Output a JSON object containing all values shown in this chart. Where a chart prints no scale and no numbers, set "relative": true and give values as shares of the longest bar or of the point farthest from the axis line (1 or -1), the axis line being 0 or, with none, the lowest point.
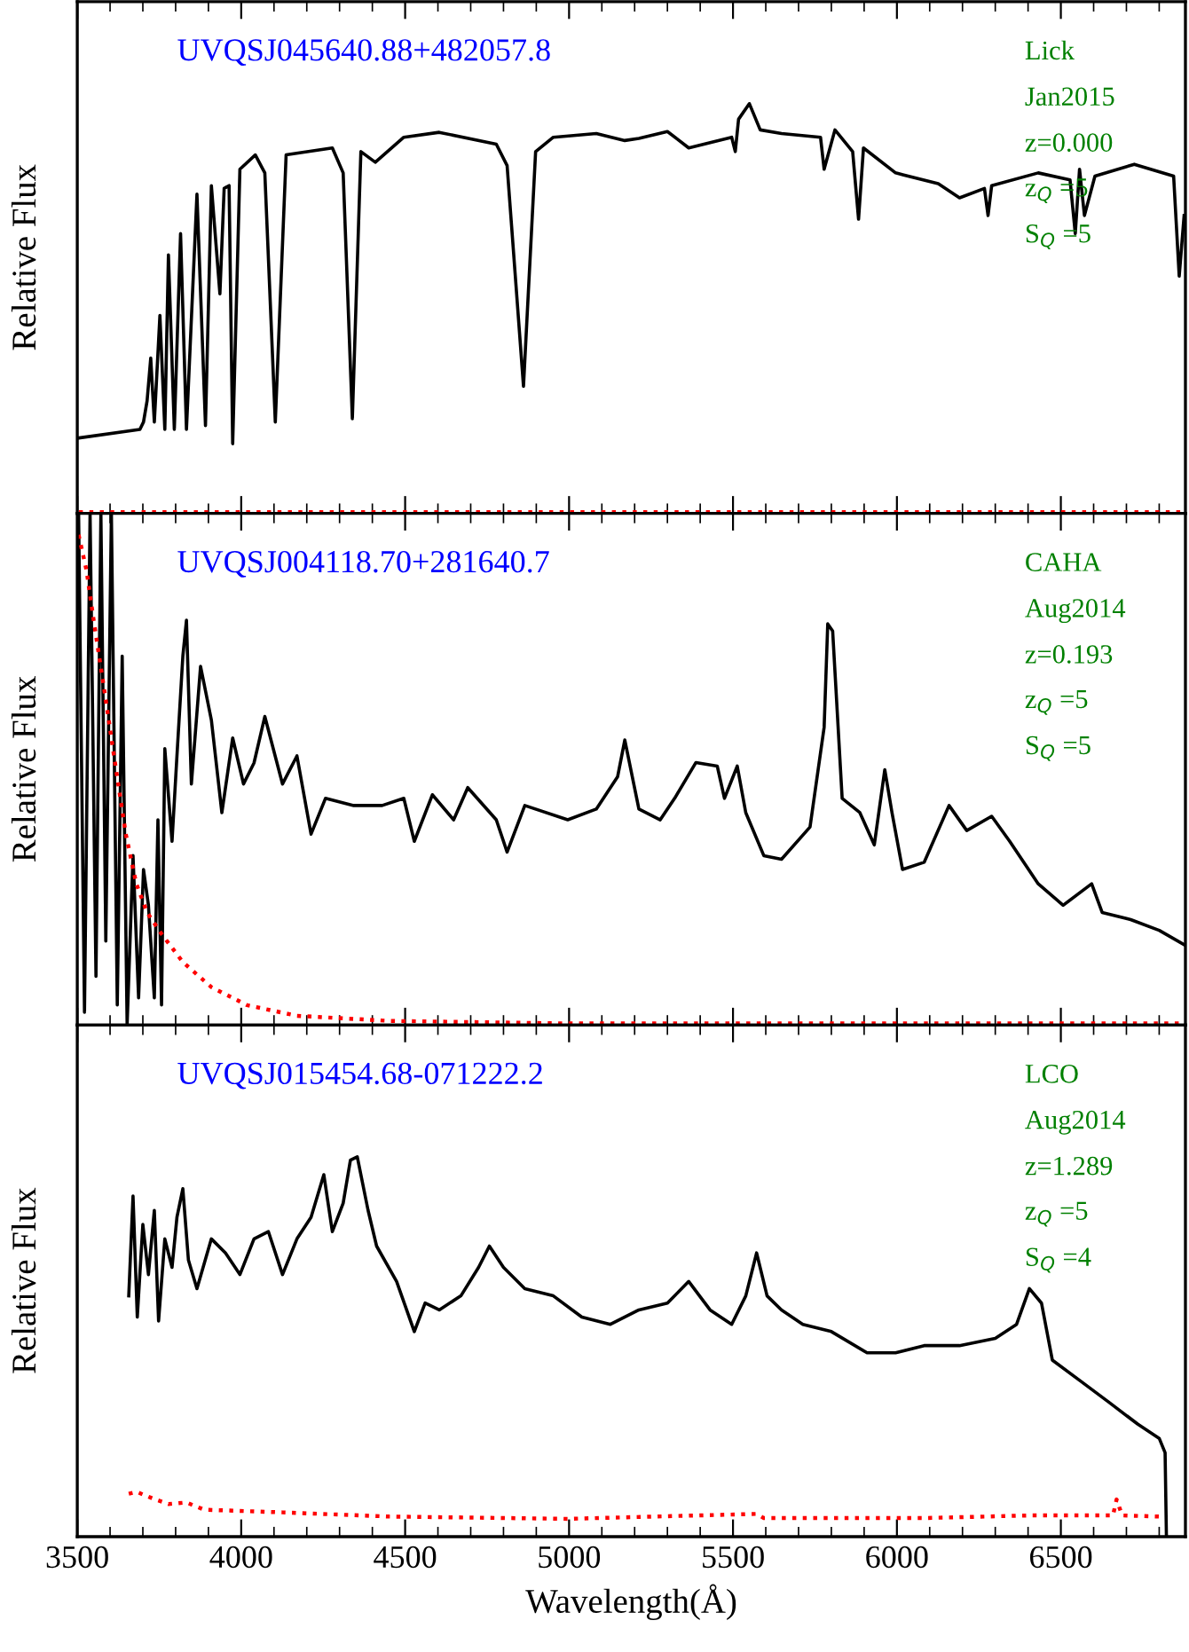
{
  "chart_data": [
    {
      "type": "line",
      "relative": true,
      "title": "UVQSJ045640.88+482057.8",
      "ylabel": "Relative Flux",
      "xlim": [
        3500,
        6880
      ],
      "xticks": [
        3500,
        4000,
        4500,
        5000,
        5500,
        6000,
        6500
      ],
      "tick_labels": false,
      "annotations": [
        "Lick",
        "Jan2015",
        "z=0.000",
        "z$_{Q}$ =5",
        "S$_{Q}$ =5"
      ],
      "series": [
        {
          "color": "#000000",
          "line_style": "solid",
          "x": [
            3505,
            3691,
            3702,
            3713,
            3724,
            3735,
            3752,
            3767,
            3778,
            3796,
            3815,
            3833,
            3865,
            3891,
            3909,
            3935,
            3948,
            3963,
            3974,
            3996,
            4043,
            4072,
            4104,
            4137,
            4278,
            4311,
            4339,
            4365,
            4409,
            4496,
            4604,
            4778,
            4811,
            4861,
            4898,
            4952,
            5083,
            5170,
            5213,
            5300,
            5365,
            5496,
            5507,
            5517,
            5550,
            5583,
            5648,
            5767,
            5778,
            5811,
            5865,
            5883,
            5898,
            5996,
            6126,
            6191,
            6267,
            6278,
            6289,
            6431,
            6528,
            6544,
            6557,
            6572,
            6604,
            6724,
            6844,
            6861,
            6876
          ],
          "values": [
            0.184,
            0.205,
            0.223,
            0.275,
            0.379,
            0.223,
            0.483,
            0.205,
            0.631,
            0.205,
            0.683,
            0.205,
            0.779,
            0.214,
            0.8,
            0.536,
            0.793,
            0.8,
            0.17,
            0.84,
            0.875,
            0.831,
            0.223,
            0.875,
            0.892,
            0.831,
            0.231,
            0.883,
            0.857,
            0.918,
            0.93,
            0.901,
            0.849,
            0.31,
            0.883,
            0.918,
            0.927,
            0.91,
            0.915,
            0.932,
            0.892,
            0.918,
            0.883,
            0.962,
            1.0,
            0.936,
            0.927,
            0.918,
            0.84,
            0.936,
            0.883,
            0.718,
            0.892,
            0.831,
            0.805,
            0.77,
            0.793,
            0.727,
            0.8,
            0.831,
            0.814,
            0.683,
            0.84,
            0.727,
            0.823,
            0.852,
            0.823,
            0.579,
            0.727
          ]
        },
        {
          "color": "#ff0000",
          "line_style": "dotted",
          "x": [
            3505,
            4000,
            4500,
            5000,
            5500,
            6000,
            6500,
            6876
          ],
          "values": [
            0.003,
            0.003,
            0.003,
            0.003,
            0.003,
            0.003,
            0.003,
            0.003
          ]
        }
      ]
    },
    {
      "type": "line",
      "relative": true,
      "title": "UVQSJ004118.70+281640.7",
      "ylabel": "Relative Flux",
      "xlim": [
        3500,
        6880
      ],
      "xticks": [
        3500,
        4000,
        4500,
        5000,
        5500,
        6000,
        6500
      ],
      "tick_labels": false,
      "annotations": [
        "CAHA",
        "Aug2014",
        "z=0.193",
        "z$_{Q}$ =5",
        "S$_{Q}$ =5"
      ],
      "series": [
        {
          "color": "#000000",
          "line_style": "solid",
          "x": [
            3504,
            3522,
            3539,
            3557,
            3572,
            3587,
            3604,
            3622,
            3637,
            3652,
            3670,
            3687,
            3702,
            3717,
            3735,
            3746,
            3757,
            3767,
            3789,
            3804,
            3822,
            3833,
            3848,
            3876,
            3909,
            3941,
            3974,
            4007,
            4039,
            4072,
            4126,
            4170,
            4213,
            4257,
            4343,
            4430,
            4496,
            4528,
            4583,
            4648,
            4691,
            4778,
            4811,
            4865,
            4996,
            5083,
            5148,
            5170,
            5213,
            5278,
            5322,
            5387,
            5452,
            5474,
            5513,
            5539,
            5594,
            5648,
            5735,
            5778,
            5789,
            5804,
            5833,
            5887,
            5931,
            5963,
            5985,
            6017,
            6083,
            6159,
            6213,
            6289,
            6344,
            6431,
            6507,
            6594,
            6626,
            6713,
            6800,
            6876
          ],
          "values": [
            1.0,
            0.025,
            1.0,
            0.095,
            1.0,
            0.164,
            1.0,
            0.039,
            0.721,
            0.0,
            0.331,
            0.053,
            0.304,
            0.234,
            0.053,
            0.401,
            0.039,
            0.54,
            0.359,
            0.526,
            0.721,
            0.791,
            0.471,
            0.701,
            0.596,
            0.415,
            0.561,
            0.471,
            0.512,
            0.603,
            0.471,
            0.526,
            0.373,
            0.443,
            0.429,
            0.429,
            0.443,
            0.359,
            0.45,
            0.401,
            0.464,
            0.401,
            0.338,
            0.429,
            0.401,
            0.422,
            0.485,
            0.557,
            0.422,
            0.401,
            0.443,
            0.513,
            0.506,
            0.443,
            0.506,
            0.415,
            0.331,
            0.324,
            0.387,
            0.582,
            0.784,
            0.77,
            0.443,
            0.415,
            0.352,
            0.499,
            0.415,
            0.304,
            0.318,
            0.429,
            0.38,
            0.408,
            0.359,
            0.276,
            0.234,
            0.276,
            0.22,
            0.206,
            0.185,
            0.157
          ]
        },
        {
          "color": "#ff0000",
          "line_style": "dotted",
          "x": [
            3504,
            3528,
            3550,
            3583,
            3615,
            3648,
            3680,
            3713,
            3757,
            3822,
            3909,
            4017,
            4170,
            4452,
            4996,
            6876
          ],
          "values": [
            0.958,
            0.889,
            0.791,
            0.652,
            0.513,
            0.373,
            0.276,
            0.22,
            0.178,
            0.123,
            0.074,
            0.039,
            0.018,
            0.008,
            0.003,
            0.003
          ]
        }
      ]
    },
    {
      "type": "line",
      "relative": true,
      "title": "UVQSJ015454.68-071222.2",
      "ylabel": "Relative Flux",
      "xlabel": "Wavelength(Å)",
      "xlim": [
        3500,
        6880
      ],
      "xticks": [
        3500,
        4000,
        4500,
        5000,
        5500,
        6000,
        6500
      ],
      "tick_labels": "x",
      "annotations": [
        "LCO",
        "Aug2014",
        "z=1.289",
        "z$_{Q}$ =5",
        "S$_{Q}$ =4"
      ],
      "series": [
        {
          "color": "#000000",
          "line_style": "solid",
          "x": [
            3657,
            3670,
            3683,
            3700,
            3717,
            3735,
            3748,
            3767,
            3789,
            3804,
            3822,
            3839,
            3865,
            3909,
            3952,
            3996,
            4039,
            4083,
            4126,
            4170,
            4213,
            4252,
            4278,
            4311,
            4333,
            4354,
            4387,
            4413,
            4474,
            4528,
            4561,
            4604,
            4670,
            4724,
            4757,
            4800,
            4865,
            4952,
            5039,
            5126,
            5213,
            5300,
            5365,
            5430,
            5496,
            5539,
            5572,
            5604,
            5648,
            5713,
            5800,
            5909,
            5996,
            6083,
            6191,
            6300,
            6365,
            6404,
            6441,
            6474,
            6561,
            6648,
            6735,
            6800,
            6818,
            6822
          ],
          "values": [
            0.634,
            0.897,
            0.578,
            0.822,
            0.69,
            0.859,
            0.568,
            0.784,
            0.709,
            0.841,
            0.916,
            0.728,
            0.653,
            0.784,
            0.747,
            0.69,
            0.784,
            0.803,
            0.69,
            0.784,
            0.841,
            0.953,
            0.803,
            0.878,
            0.991,
            1.0,
            0.859,
            0.765,
            0.672,
            0.54,
            0.615,
            0.597,
            0.634,
            0.709,
            0.765,
            0.709,
            0.653,
            0.634,
            0.578,
            0.559,
            0.597,
            0.615,
            0.672,
            0.597,
            0.559,
            0.634,
            0.747,
            0.634,
            0.597,
            0.559,
            0.54,
            0.484,
            0.484,
            0.503,
            0.503,
            0.522,
            0.559,
            0.653,
            0.615,
            0.465,
            0.409,
            0.353,
            0.296,
            0.259,
            0.221,
            0.0
          ]
        },
        {
          "color": "#ff0000",
          "line_style": "dotted",
          "x": [
            3657,
            3681,
            3735,
            3778,
            3833,
            3887,
            4126,
            4452,
            4996,
            5572,
            5594,
            6083,
            6409,
            6659,
            6670,
            6687,
            6800
          ],
          "values": [
            0.113,
            0.118,
            0.099,
            0.086,
            0.09,
            0.071,
            0.064,
            0.053,
            0.047,
            0.06,
            0.049,
            0.049,
            0.056,
            0.056,
            0.098,
            0.056,
            0.053
          ]
        }
      ]
    }
  ]
}
